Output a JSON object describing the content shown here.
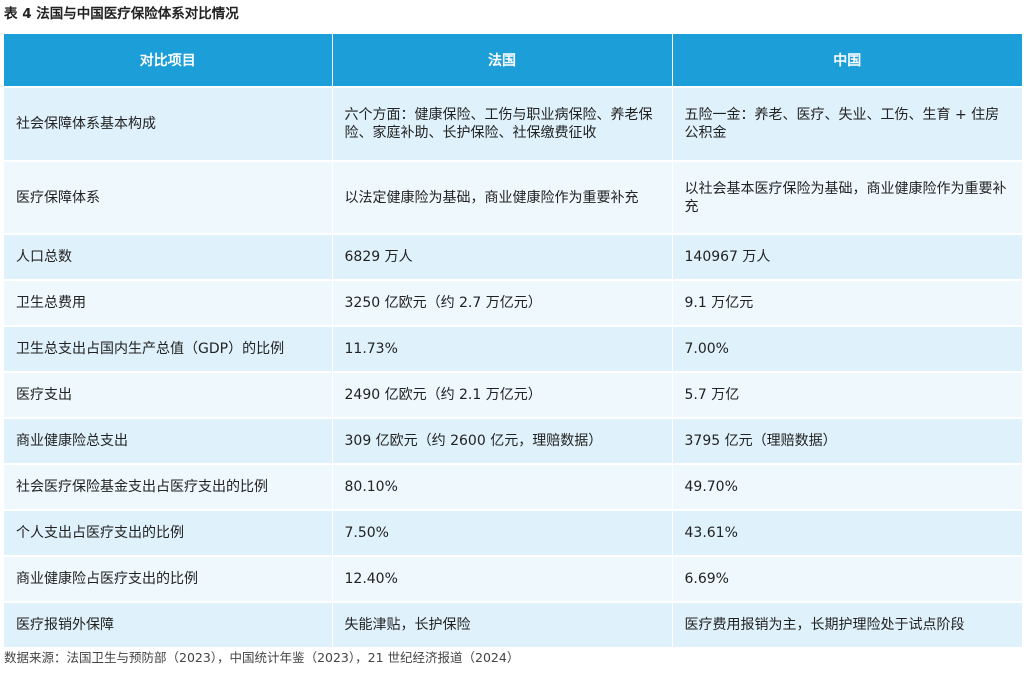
{
  "title": "表 4  法国与中国医疗保险体系对比情况",
  "header": {
    "item": "对比项目",
    "france": "法国",
    "china": "中国"
  },
  "rows": [
    {
      "item": "社会保障体系基本构成",
      "france": "六个方面：健康保险、工伤与职业病保险、养老保险、家庭补助、长护保险、社保缴费征收",
      "china": "五险一金：养老、医疗、失业、工伤、生育 + 住房公积金"
    },
    {
      "item": "医疗保障体系",
      "france": "以法定健康险为基础，商业健康险作为重要补充",
      "china": "以社会基本医疗保险为基础，商业健康险作为重要补充"
    },
    {
      "item": "人口总数",
      "france": "6829 万人",
      "china": "140967 万人"
    },
    {
      "item": "卫生总费用",
      "france": "3250 亿欧元（约 2.7 万亿元）",
      "china": "9.1 万亿元"
    },
    {
      "item": "卫生总支出占国内生产总值（GDP）的比例",
      "france": "11.73%",
      "china": "7.00%"
    },
    {
      "item": "医疗支出",
      "france": "2490 亿欧元（约 2.1 万亿元）",
      "china": "5.7 万亿"
    },
    {
      "item": "商业健康险总支出",
      "france": "309 亿欧元（约 2600 亿元，理赔数据）",
      "china": "3795 亿元（理赔数据）"
    },
    {
      "item": "社会医疗保险基金支出占医疗支出的比例",
      "france": "80.10%",
      "china": "49.70%"
    },
    {
      "item": "个人支出占医疗支出的比例",
      "france": "7.50%",
      "china": "43.61%"
    },
    {
      "item": "商业健康险占医疗支出的比例",
      "france": "12.40%",
      "china": "6.69%"
    },
    {
      "item": "医疗报销外保障",
      "france": "失能津贴，长护保险",
      "china": "医疗费用报销为主，长期护理险处于试点阶段"
    }
  ],
  "source": "数据来源：法国卫生与预防部（2023），中国统计年鉴（2023），21 世纪经济报道（2024）"
}
